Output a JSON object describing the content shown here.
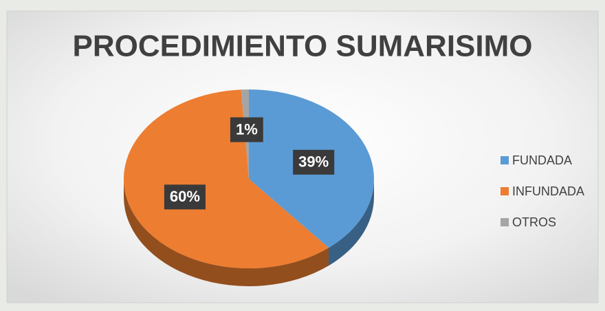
{
  "chart_data": {
    "type": "pie",
    "title": "PROCEDIMIENTO SUMARISIMO",
    "categories": [
      "FUNDADA",
      "INFUNDADA",
      "OTROS"
    ],
    "values": [
      39,
      60,
      1
    ],
    "value_labels": [
      "39%",
      "60%",
      "1%"
    ],
    "colors": [
      "#5b9bd5",
      "#ed7d31",
      "#a5a5a5"
    ],
    "legend": "right"
  }
}
